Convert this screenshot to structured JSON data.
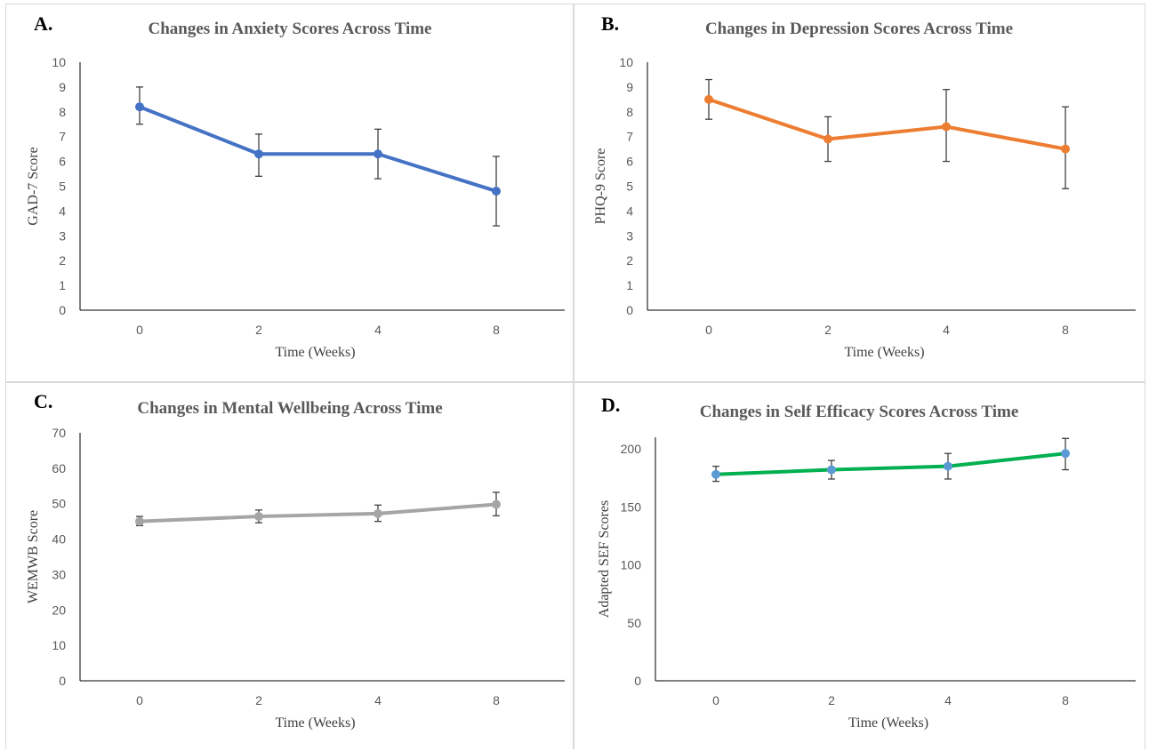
{
  "chart_data": [
    {
      "panel_letter": "A.",
      "type": "line",
      "title": "Changes in Anxiety Scores Across Time",
      "xlabel": "Time (Weeks)",
      "ylabel": "GAD-7 Score",
      "categories": [
        "0",
        "2",
        "4",
        "8"
      ],
      "values": [
        8.2,
        6.3,
        6.3,
        4.8
      ],
      "error_low": [
        7.5,
        5.4,
        5.3,
        3.4
      ],
      "error_high": [
        9.0,
        7.1,
        7.3,
        6.2
      ],
      "ylim": [
        0,
        10
      ],
      "yticks": [
        "0",
        "1",
        "2",
        "3",
        "4",
        "5",
        "6",
        "7",
        "8",
        "9",
        "10"
      ],
      "line_color": "#4472C4",
      "marker_color": "#4472C4",
      "grid": false
    },
    {
      "panel_letter": "B.",
      "type": "line",
      "title": "Changes in Depression Scores Across Time",
      "xlabel": "Time (Weeks)",
      "ylabel": "PHQ-9 Score",
      "categories": [
        "0",
        "2",
        "4",
        "8"
      ],
      "values": [
        8.5,
        6.9,
        7.4,
        6.5
      ],
      "error_low": [
        7.7,
        6.0,
        6.0,
        4.9
      ],
      "error_high": [
        9.3,
        7.8,
        8.9,
        8.2
      ],
      "ylim": [
        0,
        10
      ],
      "yticks": [
        "0",
        "1",
        "2",
        "3",
        "4",
        "5",
        "6",
        "7",
        "8",
        "9",
        "10"
      ],
      "line_color": "#ED7D31",
      "marker_color": "#ED7D31",
      "grid": false
    },
    {
      "panel_letter": "C.",
      "type": "line",
      "title": "Changes in Mental Wellbeing Across Time",
      "xlabel": "Time (Weeks)",
      "ylabel": "WEMWB Score",
      "categories": [
        "0",
        "2",
        "4",
        "8"
      ],
      "values": [
        45.0,
        46.4,
        47.2,
        49.8
      ],
      "error_low": [
        43.8,
        44.6,
        45.0,
        46.6
      ],
      "error_high": [
        46.4,
        48.2,
        49.6,
        53.2
      ],
      "ylim": [
        0,
        70
      ],
      "yticks": [
        "0",
        "10",
        "20",
        "30",
        "40",
        "50",
        "60",
        "70"
      ],
      "line_color": "#A5A5A5",
      "marker_color": "#A5A5A5",
      "grid": false
    },
    {
      "panel_letter": "D.",
      "type": "line",
      "title": "Changes in Self Efficacy Scores Across Time",
      "xlabel": "Time (Weeks)",
      "ylabel": "Adapted SEF Scores",
      "categories": [
        "0",
        "2",
        "4",
        "8"
      ],
      "values": [
        178,
        182,
        185,
        196
      ],
      "error_low": [
        172,
        174,
        174,
        182
      ],
      "error_high": [
        185,
        190,
        196,
        209
      ],
      "ylim": [
        0,
        210
      ],
      "yticks": [
        "0",
        "50",
        "100",
        "150",
        "200"
      ],
      "line_color": "#00B050",
      "marker_color": "#5B9BD5",
      "grid": false
    }
  ]
}
